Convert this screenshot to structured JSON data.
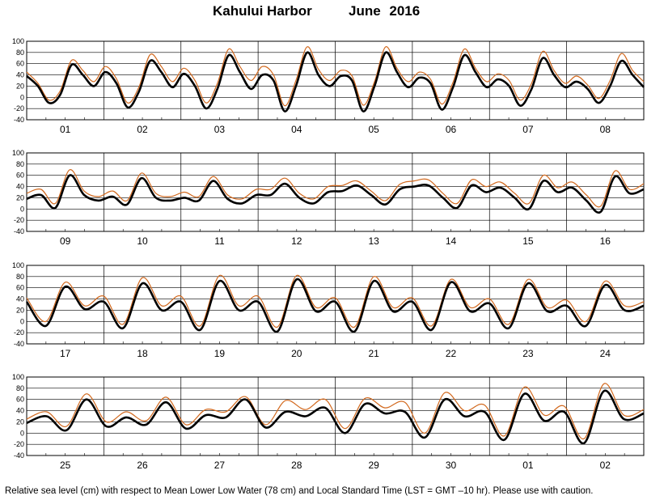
{
  "title": {
    "station": "Kahului Harbor",
    "month": "June   2016"
  },
  "footnote": "Relative sea level (cm) with respect to Mean Lower Low Water (78 cm) and Local Standard Time (LST = GMT –10 hr). Please use with caution.",
  "colors": {
    "observed": "#d2691e",
    "predicted": "#000000",
    "grid": "#000000"
  },
  "chart_data": [
    {
      "type": "line",
      "days": [
        "01",
        "02",
        "03",
        "04",
        "05",
        "06",
        "07",
        "08"
      ],
      "ylim": [
        -40,
        100
      ],
      "yticks": [
        -40,
        -20,
        0,
        20,
        40,
        60,
        80,
        100
      ],
      "series": [
        {
          "key": "predicted",
          "values": [
            38,
            20,
            -10,
            5,
            58,
            40,
            20,
            45,
            25,
            -18,
            10,
            65,
            45,
            18,
            42,
            20,
            -20,
            15,
            75,
            45,
            15,
            40,
            30,
            -25,
            20,
            80,
            40,
            20,
            38,
            30,
            -25,
            20,
            80,
            45,
            18,
            35,
            25,
            -22,
            18,
            75,
            45,
            18,
            32,
            20,
            -15,
            15,
            70,
            40,
            18,
            28,
            15,
            -10,
            20,
            65,
            40,
            18
          ]
        },
        {
          "key": "observed",
          "values": [
            45,
            25,
            -5,
            12,
            66,
            48,
            28,
            55,
            33,
            -10,
            18,
            76,
            55,
            28,
            52,
            30,
            -10,
            25,
            86,
            55,
            30,
            55,
            40,
            -15,
            30,
            90,
            50,
            30,
            48,
            38,
            -14,
            28,
            90,
            52,
            28,
            45,
            32,
            -12,
            27,
            86,
            52,
            28,
            42,
            30,
            -5,
            25,
            82,
            48,
            25,
            38,
            22,
            -2,
            30,
            78,
            48,
            28
          ]
        }
      ]
    },
    {
      "type": "line",
      "days": [
        "09",
        "10",
        "11",
        "12",
        "13",
        "14",
        "15",
        "16"
      ],
      "ylim": [
        -40,
        100
      ],
      "yticks": [
        -40,
        -20,
        0,
        20,
        40,
        60,
        80,
        100
      ],
      "series": [
        {
          "key": "predicted",
          "values": [
            18,
            25,
            2,
            60,
            25,
            15,
            22,
            8,
            55,
            20,
            15,
            20,
            15,
            50,
            18,
            10,
            25,
            25,
            45,
            20,
            10,
            30,
            32,
            42,
            25,
            8,
            35,
            40,
            42,
            20,
            2,
            42,
            30,
            38,
            20,
            0,
            50,
            30,
            38,
            15,
            -5,
            58,
            28,
            35
          ]
        },
        {
          "key": "observed",
          "values": [
            28,
            35,
            10,
            70,
            32,
            22,
            32,
            15,
            64,
            28,
            22,
            30,
            22,
            58,
            25,
            18,
            35,
            35,
            55,
            28,
            18,
            40,
            42,
            50,
            32,
            15,
            44,
            50,
            52,
            28,
            10,
            52,
            40,
            48,
            28,
            10,
            60,
            38,
            48,
            25,
            5,
            68,
            35,
            45
          ]
        }
      ]
    },
    {
      "type": "line",
      "days": [
        "17",
        "18",
        "19",
        "20",
        "21",
        "22",
        "23",
        "24"
      ],
      "ylim": [
        -40,
        100
      ],
      "yticks": [
        -40,
        -20,
        0,
        20,
        40,
        60,
        80,
        100
      ],
      "series": [
        {
          "key": "predicted",
          "values": [
            35,
            -8,
            62,
            22,
            35,
            -12,
            68,
            20,
            35,
            -15,
            72,
            20,
            35,
            -18,
            75,
            18,
            35,
            -18,
            72,
            18,
            35,
            -15,
            70,
            18,
            32,
            -12,
            68,
            18,
            28,
            -8,
            65,
            20,
            28
          ]
        },
        {
          "key": "observed",
          "values": [
            42,
            0,
            70,
            28,
            45,
            -5,
            78,
            28,
            45,
            -8,
            82,
            28,
            45,
            -10,
            82,
            25,
            42,
            -10,
            80,
            25,
            42,
            -8,
            75,
            25,
            40,
            -5,
            75,
            25,
            38,
            0,
            72,
            28,
            35
          ]
        }
      ]
    },
    {
      "type": "line",
      "days": [
        "25",
        "26",
        "27",
        "28",
        "29",
        "30",
        "01",
        "02"
      ],
      "ylim": [
        -40,
        100
      ],
      "yticks": [
        -40,
        -20,
        0,
        20,
        40,
        60,
        80,
        100
      ],
      "series": [
        {
          "key": "predicted",
          "values": [
            18,
            30,
            5,
            60,
            12,
            28,
            15,
            55,
            8,
            32,
            28,
            60,
            10,
            38,
            30,
            45,
            0,
            52,
            35,
            38,
            -8,
            60,
            30,
            38,
            -12,
            70,
            22,
            38,
            -18,
            75,
            25,
            35
          ]
        },
        {
          "key": "observed",
          "values": [
            25,
            38,
            12,
            70,
            20,
            38,
            22,
            64,
            15,
            42,
            38,
            65,
            15,
            58,
            42,
            60,
            8,
            62,
            45,
            55,
            0,
            72,
            40,
            50,
            -5,
            82,
            32,
            48,
            -10,
            88,
            32,
            42
          ]
        }
      ]
    }
  ]
}
